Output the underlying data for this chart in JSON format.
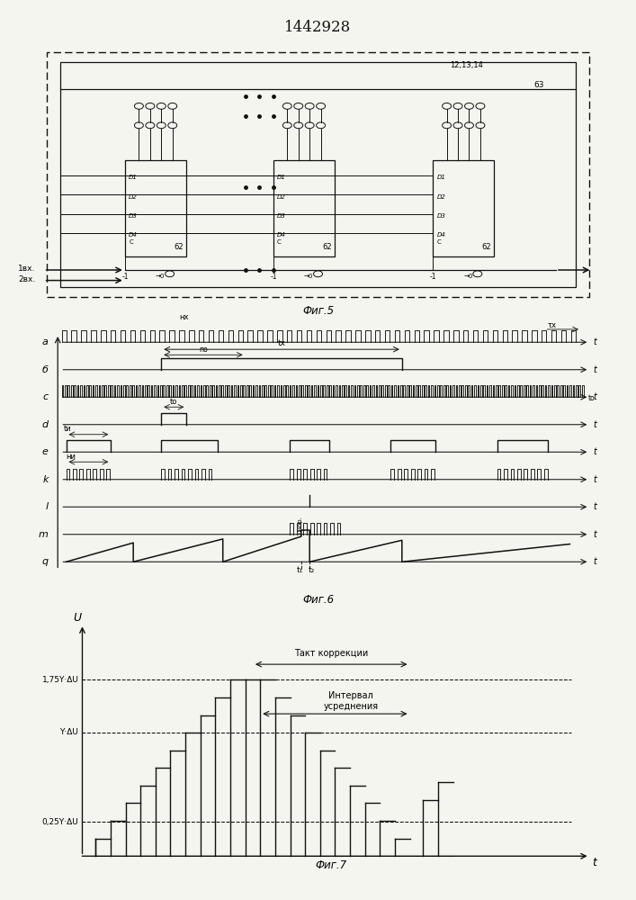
{
  "title": "1442928",
  "fig5_label": "Фиг.5",
  "fig6_label": "Фиг.6",
  "fig7_label": "Фиг.7",
  "bg_color": "#f5f5f0",
  "line_color": "#111111",
  "fig7_annotation1": "Такт коррекции",
  "fig7_annotation2": "Интервал\nусреднения",
  "row_labels": [
    "a",
    "б",
    "c",
    "d",
    "e",
    "k",
    "l",
    "m",
    "q"
  ],
  "fig7_y175": "1,75Y·ΔU",
  "fig7_yY": "Y·ΔU",
  "fig7_y025": "0,25Y·ΔU",
  "fig5_labels_12_13_14": "12,13,14",
  "fig5_label_63": "63",
  "fig5_label_1vx": "1вх.",
  "fig5_label_2vx": "2вх."
}
